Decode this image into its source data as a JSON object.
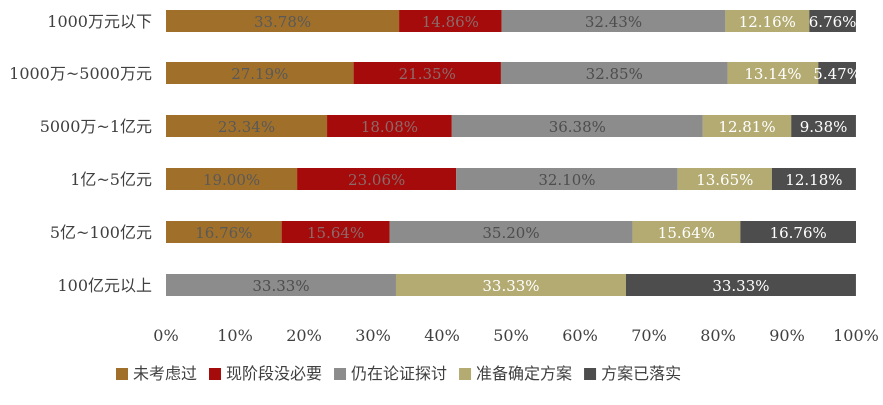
{
  "chart_data": {
    "type": "bar",
    "orientation": "horizontal",
    "stacked": "percent",
    "categories": [
      "1000万元以下",
      "1000万~5000万元",
      "5000万~1亿元",
      "1亿~5亿元",
      "5亿~100亿元",
      "100亿元以上"
    ],
    "series": [
      {
        "name": "未考虑过",
        "color": "#A0702A",
        "label_color": "#595959",
        "values": [
          33.78,
          27.19,
          23.34,
          19.0,
          16.76,
          0
        ]
      },
      {
        "name": "现阶段没必要",
        "color": "#A50B0B",
        "label_color": "#8C6A6A",
        "values": [
          14.86,
          21.35,
          18.08,
          23.06,
          15.64,
          0
        ]
      },
      {
        "name": "仍在论证探讨",
        "color": "#8C8C8C",
        "label_color": "#4D4D4D",
        "values": [
          32.43,
          32.85,
          36.38,
          32.1,
          35.2,
          33.33
        ]
      },
      {
        "name": "准备确定方案",
        "color": "#B3AB72",
        "label_color": "#FFFFFF",
        "values": [
          12.16,
          13.14,
          12.81,
          13.65,
          15.64,
          33.33
        ]
      },
      {
        "name": "方案已落实",
        "color": "#4D4D4D",
        "label_color": "#FFFFFF",
        "values": [
          6.76,
          5.47,
          9.38,
          12.18,
          16.76,
          33.33
        ]
      }
    ],
    "value_labels": [
      [
        "33.78%",
        "14.86%",
        "32.43%",
        "12.16%",
        "6.76%"
      ],
      [
        "27.19%",
        "21.35%",
        "32.85%",
        "13.14%",
        "5.47%"
      ],
      [
        "23.34%",
        "18.08%",
        "36.38%",
        "12.81%",
        "9.38%"
      ],
      [
        "19.00%",
        "23.06%",
        "32.10%",
        "13.65%",
        "12.18%"
      ],
      [
        "16.76%",
        "15.64%",
        "35.20%",
        "15.64%",
        "16.76%"
      ],
      [
        "",
        "",
        "33.33%",
        "33.33%",
        "33.33%"
      ]
    ],
    "x_ticks": [
      "0%",
      "10%",
      "20%",
      "30%",
      "40%",
      "50%",
      "60%",
      "70%",
      "80%",
      "90%",
      "100%"
    ],
    "xlim": [
      0,
      100
    ],
    "grid": false,
    "legend_position": "bottom"
  }
}
